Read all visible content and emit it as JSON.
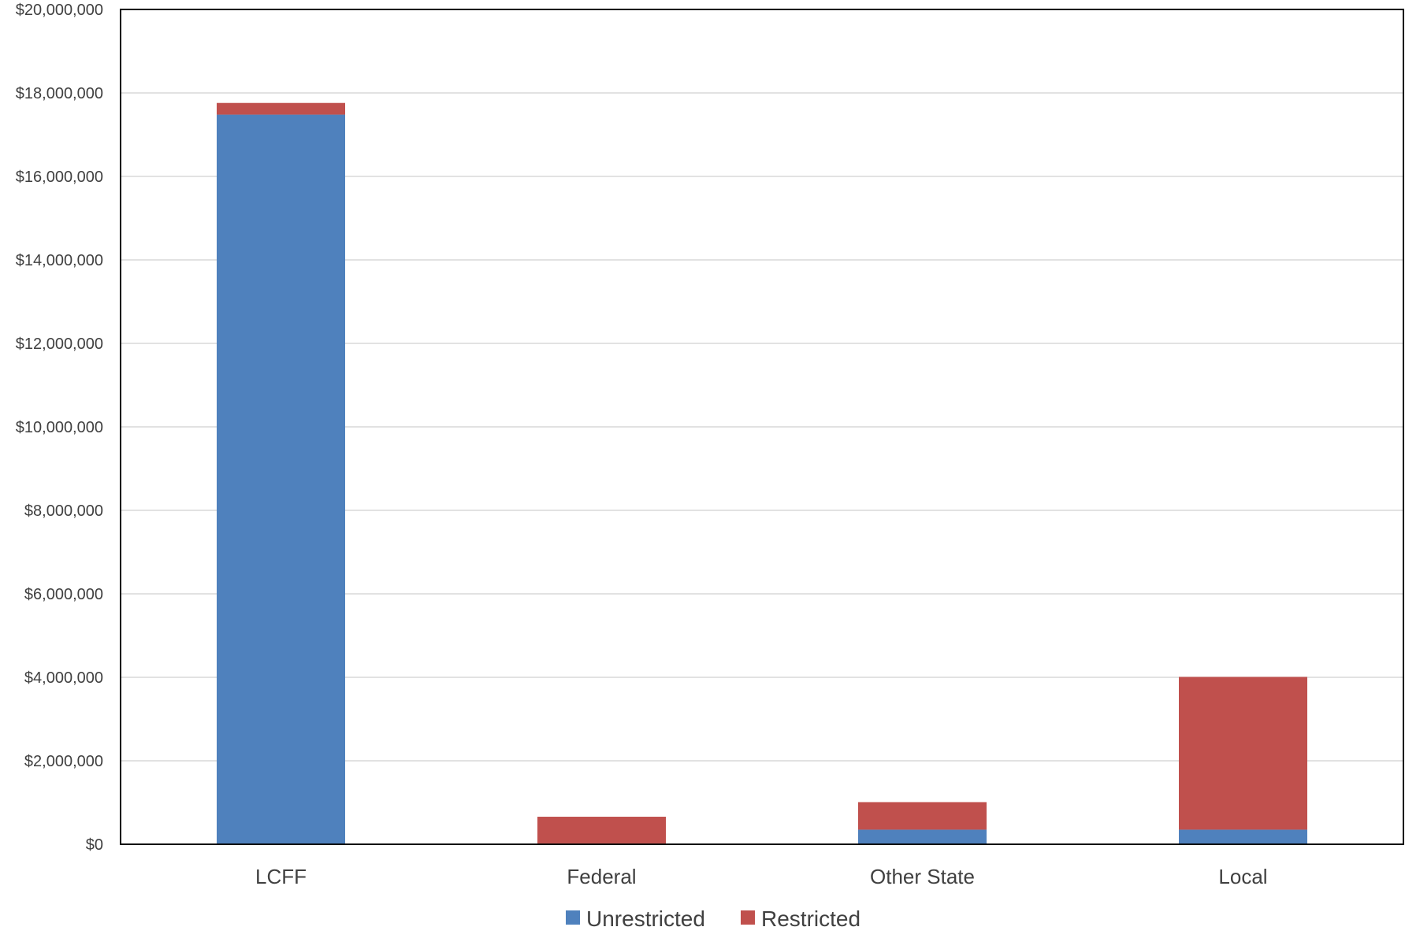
{
  "chart_data": {
    "type": "bar",
    "stacked": true,
    "categories": [
      "LCFF",
      "Federal",
      "Other State",
      "Local"
    ],
    "series": [
      {
        "name": "Unrestricted",
        "color": "#4f81bd",
        "values": [
          17480000,
          20000,
          350000,
          350000
        ]
      },
      {
        "name": "Restricted",
        "color": "#c0504d",
        "values": [
          280000,
          640000,
          660000,
          3660000
        ]
      }
    ],
    "ylim": [
      0,
      20000000
    ],
    "yticks": [
      {
        "value": 0,
        "label": "$0"
      },
      {
        "value": 2000000,
        "label": "$2,000,000"
      },
      {
        "value": 4000000,
        "label": "$4,000,000"
      },
      {
        "value": 6000000,
        "label": "$6,000,000"
      },
      {
        "value": 8000000,
        "label": "$8,000,000"
      },
      {
        "value": 10000000,
        "label": "$10,000,000"
      },
      {
        "value": 12000000,
        "label": "$12,000,000"
      },
      {
        "value": 14000000,
        "label": "$14,000,000"
      },
      {
        "value": 16000000,
        "label": "$16,000,000"
      },
      {
        "value": 18000000,
        "label": "$18,000,000"
      },
      {
        "value": 20000000,
        "label": "$20,000,000"
      }
    ],
    "grid": true,
    "legend": "bottom"
  }
}
